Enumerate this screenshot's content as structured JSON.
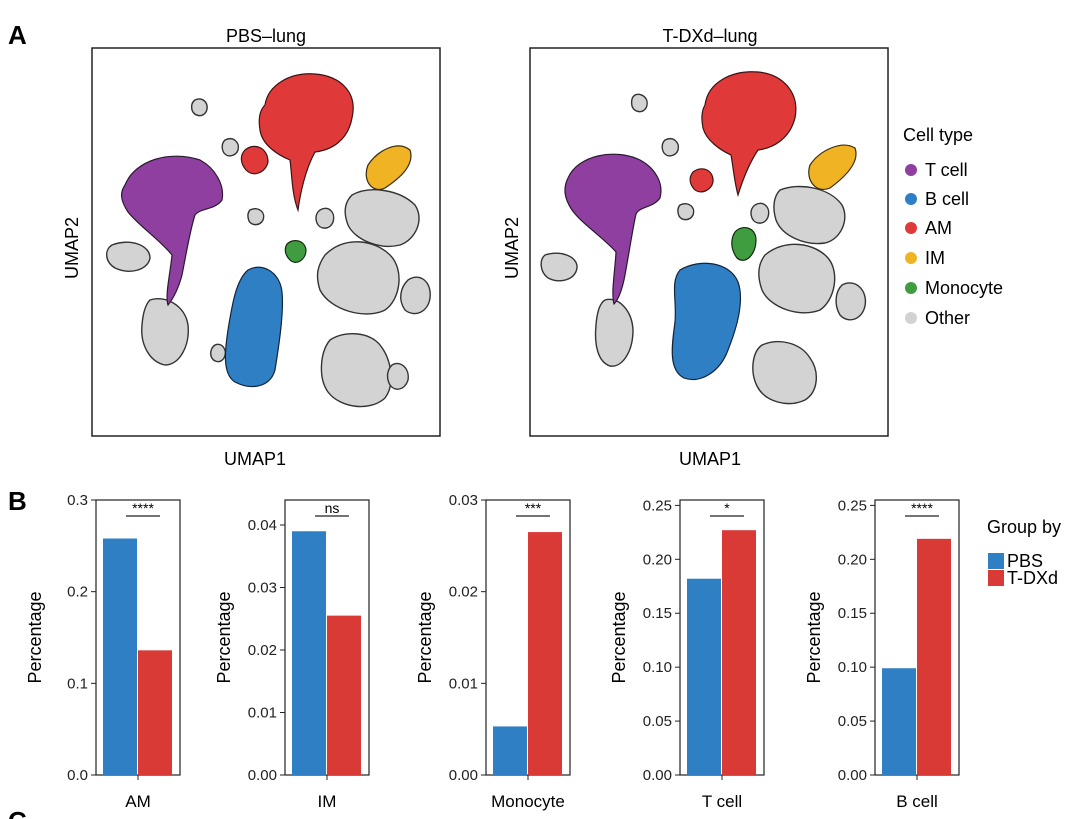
{
  "panels": {
    "A": "A",
    "B": "B",
    "C": "C"
  },
  "umap": [
    {
      "title": "PBS–lung",
      "xlabel": "UMAP1",
      "ylabel": "UMAP2"
    },
    {
      "title": "T-DXd–lung",
      "xlabel": "UMAP1",
      "ylabel": "UMAP2"
    }
  ],
  "cell_type_legend": {
    "title": "Cell type",
    "items": [
      {
        "label": "T cell",
        "color": "#8e3fa0"
      },
      {
        "label": "B cell",
        "color": "#2f7fc4"
      },
      {
        "label": "AM",
        "color": "#e0393a"
      },
      {
        "label": "IM",
        "color": "#f0b323"
      },
      {
        "label": "Monocyte",
        "color": "#3f9c3f"
      },
      {
        "label": "Other",
        "color": "#d2d2d2"
      }
    ]
  },
  "group_legend": {
    "title": "Group by",
    "items": [
      {
        "label": "PBS",
        "color": "#2f7fc4"
      },
      {
        "label": "T-DXd",
        "color": "#d93a36"
      }
    ]
  },
  "chart_data": [
    {
      "type": "bar",
      "xlabel": "AM",
      "ylabel": "Percentage",
      "categories": [
        "PBS",
        "T-DXd"
      ],
      "values": [
        0.258,
        0.136
      ],
      "ylim": [
        0,
        0.3
      ],
      "yticks": [
        "0.0",
        "0.1",
        "0.2",
        "0.3"
      ],
      "significance": "****"
    },
    {
      "type": "bar",
      "xlabel": "IM",
      "ylabel": "Percentage",
      "categories": [
        "PBS",
        "T-DXd"
      ],
      "values": [
        0.039,
        0.0255
      ],
      "ylim": [
        0,
        0.044
      ],
      "yticks": [
        "0.00",
        "0.01",
        "0.02",
        "0.03",
        "0.04"
      ],
      "significance": "ns"
    },
    {
      "type": "bar",
      "xlabel": "Monocyte",
      "ylabel": "Percentage",
      "categories": [
        "PBS",
        "T-DXd"
      ],
      "values": [
        0.0053,
        0.0265
      ],
      "ylim": [
        0,
        0.03
      ],
      "yticks": [
        "0.00",
        "0.01",
        "0.02",
        "0.03"
      ],
      "significance": "***"
    },
    {
      "type": "bar",
      "xlabel": "T cell",
      "ylabel": "Percentage",
      "categories": [
        "PBS",
        "T-DXd"
      ],
      "values": [
        0.182,
        0.227
      ],
      "ylim": [
        0,
        0.255
      ],
      "yticks": [
        "0.00",
        "0.05",
        "0.10",
        "0.15",
        "0.20",
        "0.25"
      ],
      "significance": "*"
    },
    {
      "type": "bar",
      "xlabel": "B cell",
      "ylabel": "Percentage",
      "categories": [
        "PBS",
        "T-DXd"
      ],
      "values": [
        0.099,
        0.219
      ],
      "ylim": [
        0,
        0.255
      ],
      "yticks": [
        "0.00",
        "0.05",
        "0.10",
        "0.15",
        "0.20",
        "0.25"
      ],
      "significance": "****"
    }
  ]
}
